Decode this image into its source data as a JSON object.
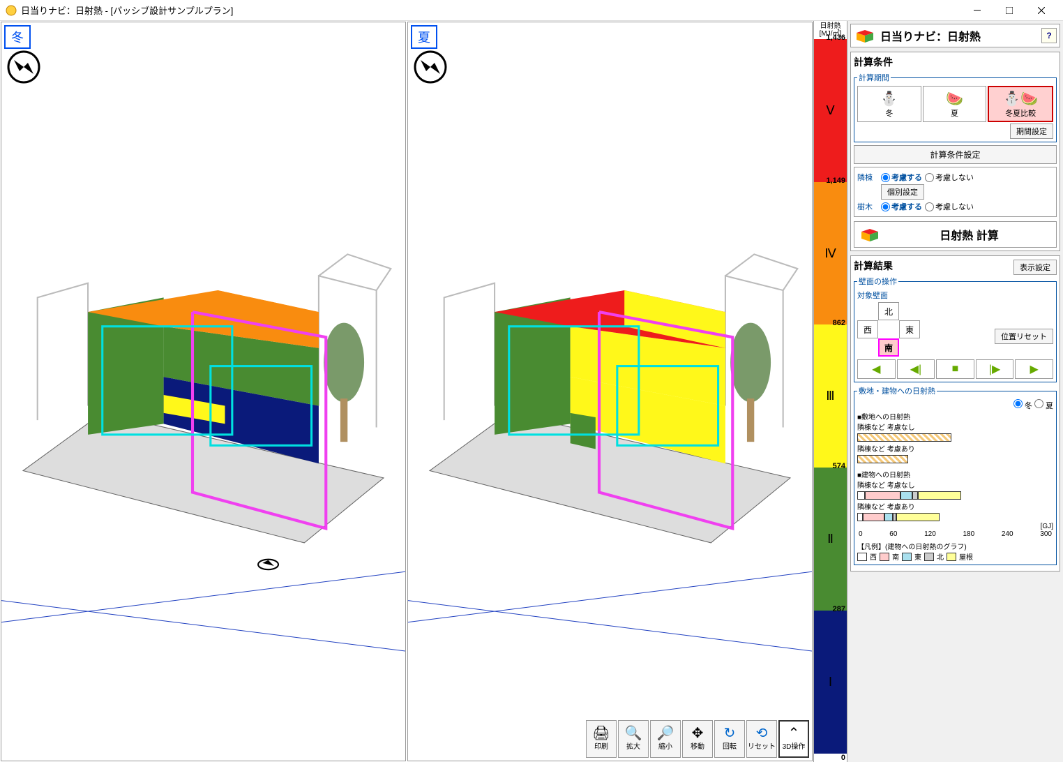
{
  "window": {
    "title": "日当りナビ：日射熱 - [パッシブ設計サンプルプラン]"
  },
  "viewports": {
    "left_label": "冬",
    "right_label": "夏"
  },
  "colorScale": {
    "header_line1": "日射熱",
    "header_line2": "[MJ/㎡]",
    "levels": [
      {
        "value": "1,436",
        "roman": "Ⅴ",
        "color": "#ee1c1c"
      },
      {
        "value": "1,149",
        "roman": "Ⅳ",
        "color": "#f98c0f"
      },
      {
        "value": "862",
        "roman": "Ⅲ",
        "color": "#fff81a"
      },
      {
        "value": "574",
        "roman": "Ⅱ",
        "color": "#498b31"
      },
      {
        "value": "287",
        "roman": "Ⅰ",
        "color": "#0a1a7a"
      }
    ],
    "bottom": "0"
  },
  "toolbar3d": {
    "print": "印刷",
    "zoom_in": "拡大",
    "zoom_out": "縮小",
    "pan": "移動",
    "rotate": "回転",
    "reset": "リセット",
    "op3d": "3D操作"
  },
  "panel": {
    "title": "日当りナビ：日射熱",
    "calc_cond_title": "計算条件",
    "period_legend": "計算期間",
    "period_winter": "冬",
    "period_summer": "夏",
    "period_compare": "冬夏比較",
    "period_settings": "期間設定",
    "calc_cond_settings": "計算条件設定",
    "neighbor_label": "隣棟",
    "tree_label": "樹木",
    "consider": "考慮する",
    "not_consider": "考慮しない",
    "indiv_settings": "個別設定",
    "calc_btn": "日射熱 計算",
    "result_title": "計算結果",
    "display_settings": "表示設定",
    "wall_legend": "壁面の操作",
    "target_wall": "対象壁面",
    "dir_n": "北",
    "dir_w": "西",
    "dir_e": "東",
    "dir_s": "南",
    "pos_reset": "位置リセット",
    "heat_legend": "敷地・建物への日射熱",
    "season_winter": "冬",
    "season_summer": "夏",
    "site_heat_title": "■敷地への日射熱",
    "bldg_heat_title": "■建物への日射熱",
    "no_neighbor": "隣棟など 考慮なし",
    "with_neighbor": "隣棟など 考慮あり",
    "axis_unit": "[GJ]",
    "axis_ticks": [
      "0",
      "60",
      "120",
      "180",
      "240",
      "300"
    ],
    "legend_title": "【凡例】(建物への日射熱のグラフ)",
    "legend_items": [
      {
        "label": "西",
        "color": "#ffffff"
      },
      {
        "label": "南",
        "color": "#ffcccc"
      },
      {
        "label": "東",
        "color": "#aae0ee"
      },
      {
        "label": "北",
        "color": "#cccccc"
      },
      {
        "label": "屋根",
        "color": "#ffff99"
      }
    ]
  },
  "charts": {
    "site": {
      "no_neighbor_pct": 48,
      "with_neighbor_pct": 26,
      "color": "#f5c97a",
      "hatch": true
    },
    "bldg": {
      "no_neighbor": [
        {
          "color": "#ffffff",
          "w": 4
        },
        {
          "color": "#ffcccc",
          "w": 18
        },
        {
          "color": "#aae0ee",
          "w": 6
        },
        {
          "color": "#cccccc",
          "w": 3
        },
        {
          "color": "#ffff99",
          "w": 22
        }
      ],
      "with_neighbor": [
        {
          "color": "#ffffff",
          "w": 3
        },
        {
          "color": "#ffcccc",
          "w": 11
        },
        {
          "color": "#aae0ee",
          "w": 4
        },
        {
          "color": "#cccccc",
          "w": 2
        },
        {
          "color": "#ffff99",
          "w": 22
        }
      ]
    }
  },
  "building": {
    "winter": {
      "roof": "#f98c0f",
      "front_top": "#498b31",
      "front_bottom": "#0a1a7a",
      "side": "#498b31"
    },
    "summer": {
      "roof": "#ee1c1c",
      "front_top": "#fff81a",
      "front_bottom": "#fff81a",
      "side": "#498b31"
    },
    "outline": "#f040f0",
    "window_outline": "#00e0e0"
  }
}
